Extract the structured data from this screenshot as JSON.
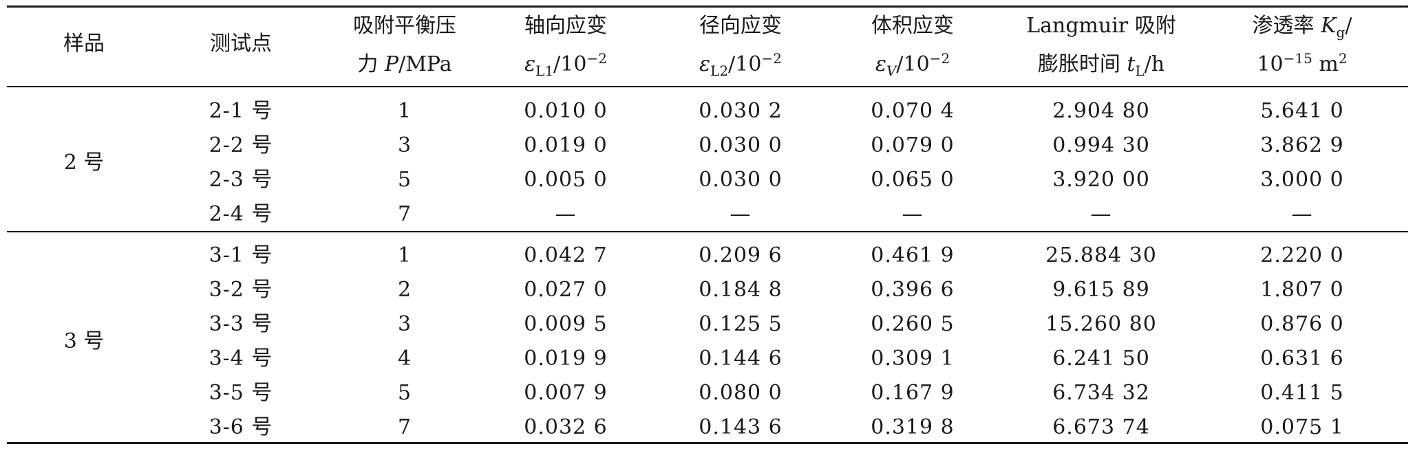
{
  "headers": {
    "sample": "样品",
    "point": "测试点",
    "pressure": [
      "吸附平衡压",
      "力 P/MPa"
    ],
    "axial": [
      "轴向应变",
      "εL1/10−2"
    ],
    "radial": [
      "径向应变",
      "εL2/10−2"
    ],
    "volume": [
      "体积应变",
      "εV/10−2"
    ],
    "langmuir": [
      "Langmuir 吸附",
      "膨胀时间 tL/h"
    ],
    "perm": [
      "渗透率 Kg/",
      "10−15 m2"
    ]
  },
  "groups": [
    {
      "sample": "2 号",
      "rows": [
        {
          "point": "2-1 号",
          "pressure": "1",
          "axial": "0.010 0",
          "radial": "0.030 2",
          "volume": "0.070 4",
          "langmuir": "2.904 80",
          "perm": "5.641 0"
        },
        {
          "point": "2-2 号",
          "pressure": "3",
          "axial": "0.019 0",
          "radial": "0.030 0",
          "volume": "0.079 0",
          "langmuir": "0.994 30",
          "perm": "3.862 9"
        },
        {
          "point": "2-3 号",
          "pressure": "5",
          "axial": "0.005 0",
          "radial": "0.030 0",
          "volume": "0.065 0",
          "langmuir": "3.920 00",
          "perm": "3.000 0"
        },
        {
          "point": "2-4 号",
          "pressure": "7",
          "axial": "—",
          "radial": "—",
          "volume": "—",
          "langmuir": "—",
          "perm": "—"
        }
      ]
    },
    {
      "sample": "3 号",
      "rows": [
        {
          "point": "3-1 号",
          "pressure": "1",
          "axial": "0.042 7",
          "radial": "0.209 6",
          "volume": "0.461 9",
          "langmuir": "25.884 30",
          "perm": "2.220 0"
        },
        {
          "point": "3-2 号",
          "pressure": "2",
          "axial": "0.027 0",
          "radial": "0.184 8",
          "volume": "0.396 6",
          "langmuir": "9.615 89",
          "perm": "1.807 0"
        },
        {
          "point": "3-3 号",
          "pressure": "3",
          "axial": "0.009 5",
          "radial": "0.125 5",
          "volume": "0.260 5",
          "langmuir": "15.260 80",
          "perm": "0.876 0"
        },
        {
          "point": "3-4 号",
          "pressure": "4",
          "axial": "0.019 9",
          "radial": "0.144 6",
          "volume": "0.309 1",
          "langmuir": "6.241 50",
          "perm": "0.631 6"
        },
        {
          "point": "3-5 号",
          "pressure": "5",
          "axial": "0.007 9",
          "radial": "0.080 0",
          "volume": "0.167 9",
          "langmuir": "6.734 32",
          "perm": "0.411 5"
        },
        {
          "point": "3-6 号",
          "pressure": "7",
          "axial": "0.032 6",
          "radial": "0.143 6",
          "volume": "0.319 8",
          "langmuir": "6.673 74",
          "perm": "0.075 1"
        }
      ]
    }
  ]
}
